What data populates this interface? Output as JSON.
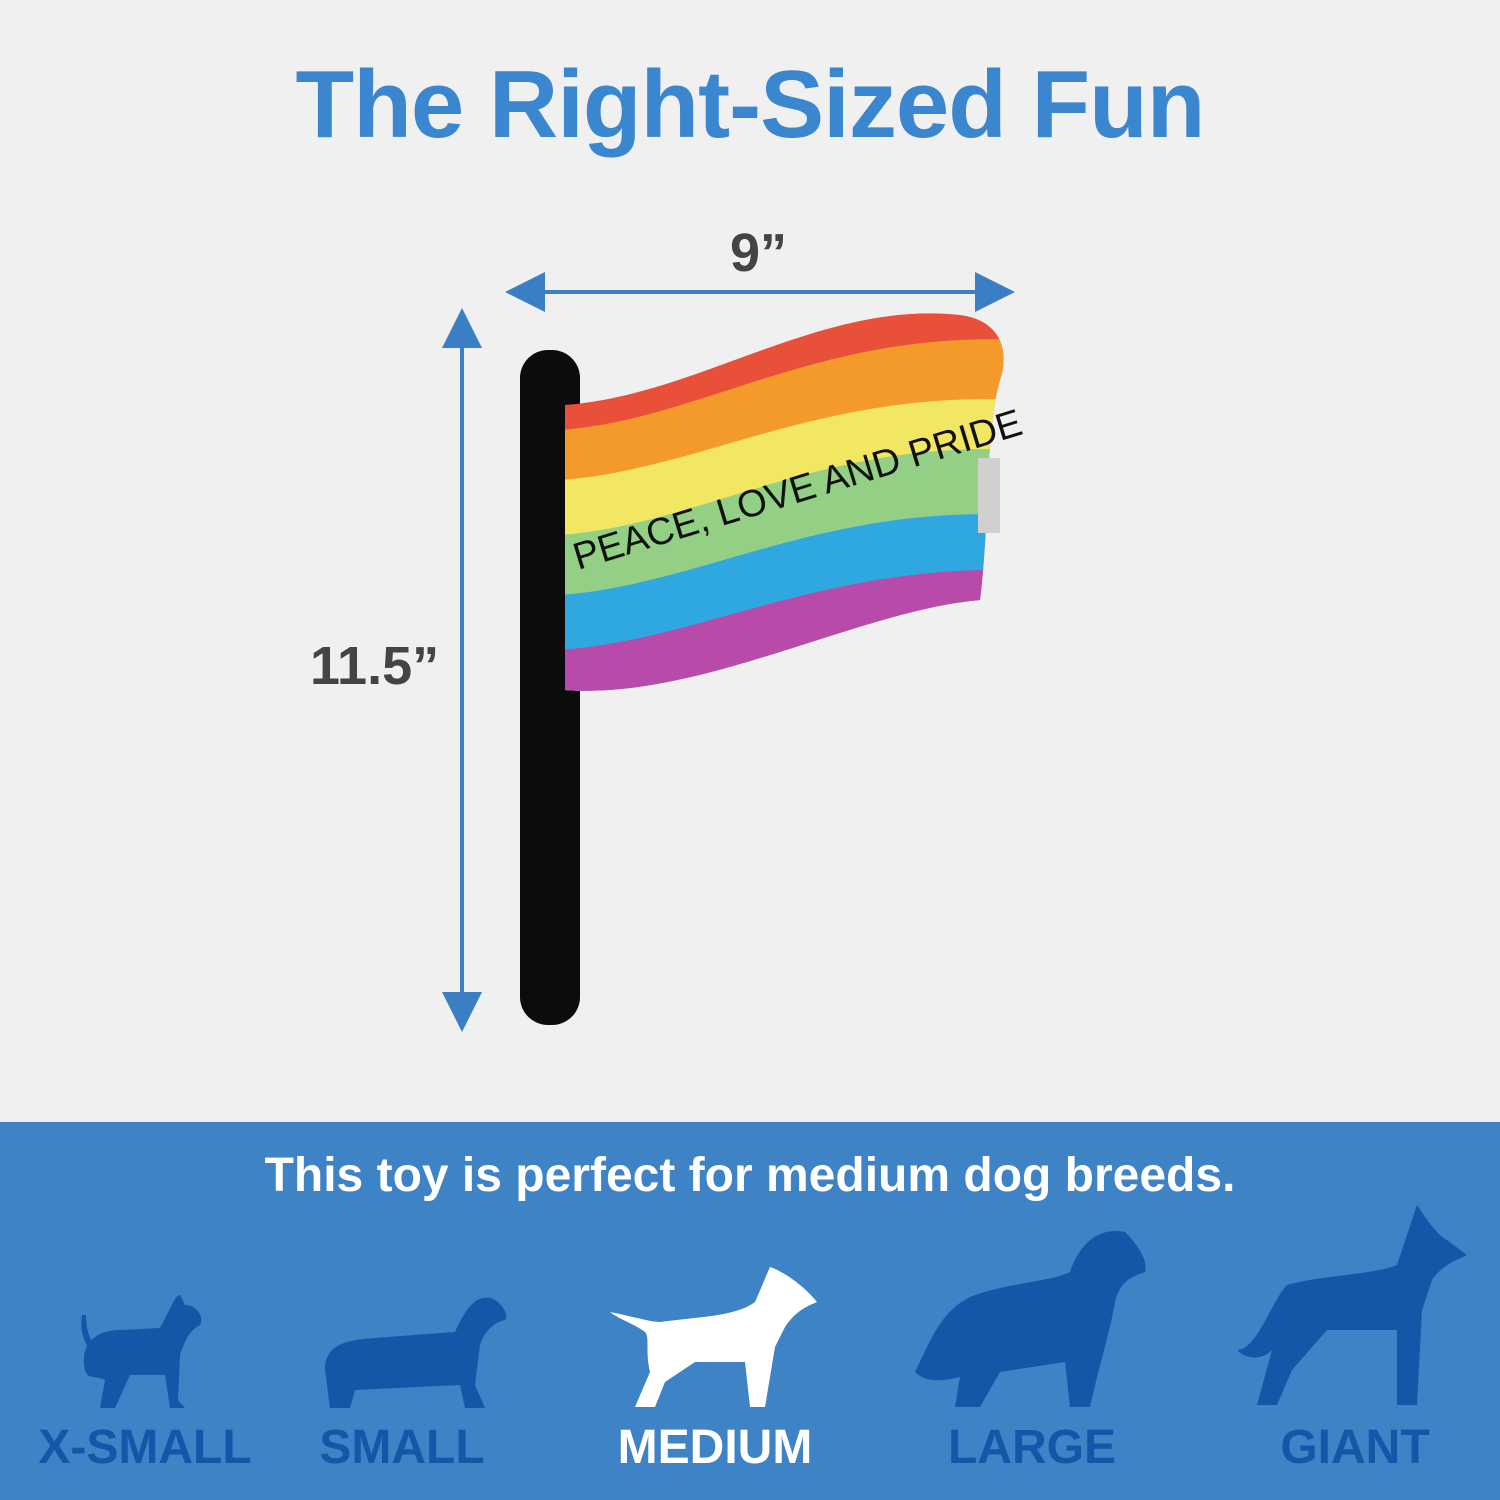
{
  "title": "The Right-Sized Fun",
  "dimensions": {
    "width": "9”",
    "height": "11.5”"
  },
  "flag_text": "PEACE, LOVE AND PRIDE",
  "tagline": "This toy is perfect for medium dog breeds.",
  "sizes": [
    {
      "label": "X-SMALL",
      "active": false
    },
    {
      "label": "SMALL",
      "active": false
    },
    {
      "label": "MEDIUM",
      "active": true
    },
    {
      "label": "LARGE",
      "active": false
    },
    {
      "label": "GIANT",
      "active": false
    }
  ],
  "colors": {
    "accent": "#3a86cf",
    "panel": "#3e83c6",
    "inactive_dog": "#1457a8",
    "active_dog": "#ffffff"
  }
}
